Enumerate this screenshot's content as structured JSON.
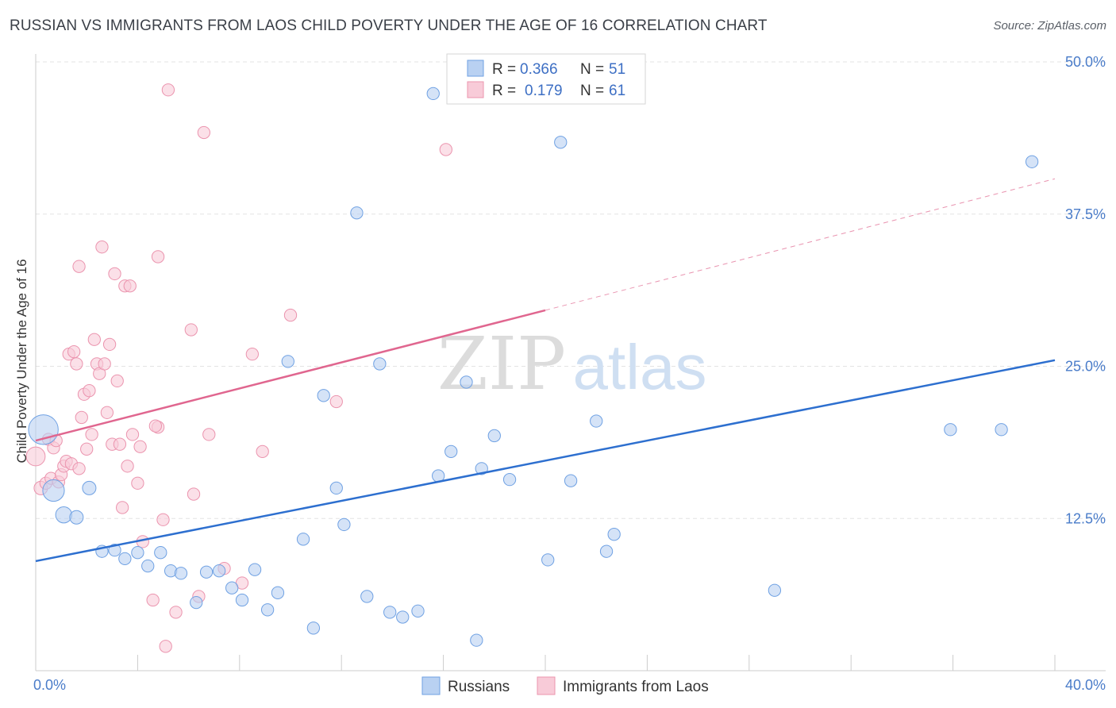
{
  "title": "RUSSIAN VS IMMIGRANTS FROM LAOS CHILD POVERTY UNDER THE AGE OF 16 CORRELATION CHART",
  "source": "Source: ZipAtlas.com",
  "watermark": {
    "zip": "ZIP",
    "atlas": "atlas"
  },
  "chart_data": {
    "type": "scatter",
    "ylabel": "Child Poverty Under the Age of 16",
    "xlim": [
      0,
      40
    ],
    "ylim": [
      0,
      50
    ],
    "x_tick_labels": [
      {
        "value": 0,
        "label": "0.0%"
      },
      {
        "value": 40,
        "label": "40.0%"
      }
    ],
    "y_tick_labels": [
      {
        "value": 12.5,
        "label": "12.5%"
      },
      {
        "value": 25,
        "label": "25.0%"
      },
      {
        "value": 37.5,
        "label": "37.5%"
      },
      {
        "value": 50,
        "label": "50.0%"
      }
    ],
    "grid": true,
    "legend_placement": "top-center",
    "legend": [
      {
        "r_label": "R =",
        "r_value": "0.366",
        "n_label": "N =",
        "n_value": "51"
      },
      {
        "r_label": "R =",
        "r_value": "0.179",
        "n_label": "N =",
        "n_value": "61"
      }
    ],
    "series": [
      {
        "name": "Russians",
        "color": "#6fa1e3",
        "fill": "#b9d1f2",
        "trend": {
          "x": [
            0,
            40
          ],
          "y": [
            9.0,
            25.5
          ],
          "color": "#2d6fcf"
        },
        "points": [
          [
            0.3,
            19.8,
            2.2
          ],
          [
            0.7,
            14.8,
            1.6
          ],
          [
            1.1,
            12.8,
            1.2
          ],
          [
            1.6,
            12.6,
            1.0
          ],
          [
            2.1,
            15.0,
            1.0
          ],
          [
            2.6,
            9.8,
            0.9
          ],
          [
            3.1,
            9.9,
            0.9
          ],
          [
            3.5,
            9.2,
            0.9
          ],
          [
            4.0,
            9.7,
            0.9
          ],
          [
            4.4,
            8.6,
            0.9
          ],
          [
            4.9,
            9.7,
            0.9
          ],
          [
            5.3,
            8.2,
            0.9
          ],
          [
            5.7,
            8.0,
            0.9
          ],
          [
            6.3,
            5.6,
            0.9
          ],
          [
            6.7,
            8.1,
            0.9
          ],
          [
            7.2,
            8.2,
            0.9
          ],
          [
            7.7,
            6.8,
            0.9
          ],
          [
            8.1,
            5.8,
            0.9
          ],
          [
            8.6,
            8.3,
            0.9
          ],
          [
            9.1,
            5.0,
            0.9
          ],
          [
            9.5,
            6.4,
            0.9
          ],
          [
            9.9,
            25.4,
            0.9
          ],
          [
            10.5,
            10.8,
            0.9
          ],
          [
            10.9,
            3.5,
            0.9
          ],
          [
            11.3,
            22.6,
            0.9
          ],
          [
            11.8,
            15.0,
            0.9
          ],
          [
            12.1,
            12.0,
            0.9
          ],
          [
            12.6,
            37.6,
            0.9
          ],
          [
            13.0,
            6.1,
            0.9
          ],
          [
            13.5,
            25.2,
            0.9
          ],
          [
            13.9,
            4.8,
            0.9
          ],
          [
            14.4,
            4.4,
            0.9
          ],
          [
            15.0,
            4.9,
            0.9
          ],
          [
            15.6,
            47.4,
            0.9
          ],
          [
            15.8,
            16.0,
            0.9
          ],
          [
            16.3,
            18.0,
            0.9
          ],
          [
            16.9,
            23.7,
            0.9
          ],
          [
            17.3,
            2.5,
            0.9
          ],
          [
            17.5,
            16.6,
            0.9
          ],
          [
            18.0,
            19.3,
            0.9
          ],
          [
            18.6,
            15.7,
            0.9
          ],
          [
            20.1,
            9.1,
            0.9
          ],
          [
            20.6,
            43.4,
            0.9
          ],
          [
            21.0,
            15.6,
            0.9
          ],
          [
            22.0,
            20.5,
            0.9
          ],
          [
            22.4,
            9.8,
            0.9
          ],
          [
            22.7,
            11.2,
            0.9
          ],
          [
            29.0,
            6.6,
            0.9
          ],
          [
            35.9,
            19.8,
            0.9
          ],
          [
            37.9,
            19.8,
            0.9
          ],
          [
            39.1,
            41.8,
            0.9
          ]
        ]
      },
      {
        "name": "Immigrants from Laos",
        "color": "#eb94ae",
        "fill": "#f8cbd8",
        "trend": {
          "x": [
            0,
            20
          ],
          "y": [
            18.9,
            29.6
          ],
          "dashed_x": [
            20,
            40
          ],
          "dashed_y": [
            29.6,
            40.4
          ],
          "color": "#e0668f"
        },
        "points": [
          [
            0.0,
            17.6,
            1.4
          ],
          [
            0.2,
            15.0,
            1.0
          ],
          [
            0.4,
            15.4,
            0.9
          ],
          [
            0.5,
            19.0,
            0.9
          ],
          [
            0.6,
            15.8,
            0.9
          ],
          [
            0.7,
            18.3,
            0.9
          ],
          [
            0.8,
            18.9,
            0.9
          ],
          [
            0.9,
            15.5,
            0.9
          ],
          [
            1.0,
            16.1,
            0.9
          ],
          [
            1.1,
            16.8,
            0.9
          ],
          [
            1.2,
            17.2,
            0.9
          ],
          [
            1.3,
            26.0,
            0.9
          ],
          [
            1.4,
            17.0,
            0.9
          ],
          [
            1.5,
            26.2,
            0.9
          ],
          [
            1.6,
            25.2,
            0.9
          ],
          [
            1.7,
            16.6,
            0.9
          ],
          [
            1.7,
            33.2,
            0.9
          ],
          [
            1.8,
            20.8,
            0.9
          ],
          [
            1.9,
            22.7,
            0.9
          ],
          [
            2.0,
            18.2,
            0.9
          ],
          [
            2.1,
            23.0,
            0.9
          ],
          [
            2.2,
            19.4,
            0.9
          ],
          [
            2.3,
            27.2,
            0.9
          ],
          [
            2.4,
            25.2,
            0.9
          ],
          [
            2.5,
            24.4,
            0.9
          ],
          [
            2.6,
            34.8,
            0.9
          ],
          [
            2.7,
            25.2,
            0.9
          ],
          [
            2.8,
            21.2,
            0.9
          ],
          [
            2.9,
            26.8,
            0.9
          ],
          [
            3.0,
            18.6,
            0.9
          ],
          [
            3.1,
            32.6,
            0.9
          ],
          [
            3.2,
            23.8,
            0.9
          ],
          [
            3.3,
            18.6,
            0.9
          ],
          [
            3.4,
            13.4,
            0.9
          ],
          [
            3.5,
            31.6,
            0.9
          ],
          [
            3.6,
            16.8,
            0.9
          ],
          [
            3.7,
            31.6,
            0.9
          ],
          [
            3.8,
            19.4,
            0.9
          ],
          [
            4.0,
            15.4,
            0.9
          ],
          [
            4.1,
            18.4,
            0.9
          ],
          [
            4.2,
            10.6,
            0.9
          ],
          [
            4.6,
            5.8,
            0.9
          ],
          [
            4.8,
            20.0,
            0.9
          ],
          [
            4.8,
            34.0,
            0.9
          ],
          [
            5.0,
            12.4,
            0.9
          ],
          [
            5.1,
            2.0,
            0.9
          ],
          [
            5.2,
            47.7,
            0.9
          ],
          [
            5.5,
            4.8,
            0.9
          ],
          [
            6.1,
            28.0,
            0.9
          ],
          [
            6.2,
            14.5,
            0.9
          ],
          [
            6.4,
            6.1,
            0.9
          ],
          [
            6.6,
            44.2,
            0.9
          ],
          [
            6.8,
            19.4,
            0.9
          ],
          [
            7.4,
            8.4,
            0.9
          ],
          [
            8.1,
            7.2,
            0.9
          ],
          [
            8.5,
            26.0,
            0.9
          ],
          [
            8.9,
            18.0,
            0.9
          ],
          [
            10.0,
            29.2,
            0.9
          ],
          [
            11.8,
            22.1,
            0.9
          ],
          [
            16.1,
            42.8,
            0.9
          ],
          [
            4.7,
            20.1,
            0.9
          ]
        ]
      }
    ]
  }
}
